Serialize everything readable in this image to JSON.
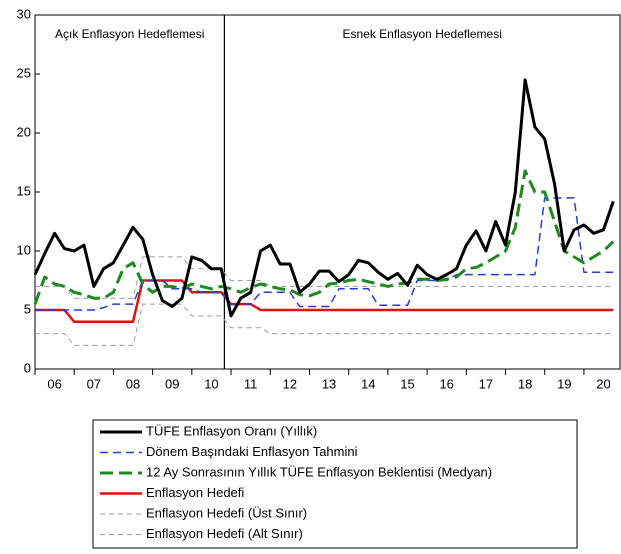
{
  "chart_data": {
    "type": "line",
    "annotations": [
      "Açık Enflasyon Hedeflemesi",
      "Esnek Enflasyon Hedeflemesi"
    ],
    "divider_x": 10.83,
    "x": [
      6,
      6.25,
      6.5,
      6.75,
      7,
      7.25,
      7.5,
      7.75,
      8,
      8.25,
      8.5,
      8.75,
      9,
      9.25,
      9.5,
      9.75,
      10,
      10.25,
      10.5,
      10.75,
      11,
      11.25,
      11.5,
      11.75,
      12,
      12.25,
      12.5,
      12.75,
      13,
      13.25,
      13.5,
      13.75,
      14,
      14.25,
      14.5,
      14.75,
      15,
      15.25,
      15.5,
      15.75,
      16,
      16.25,
      16.5,
      16.75,
      17,
      17.25,
      17.5,
      17.75,
      18,
      18.25,
      18.5,
      18.75,
      19,
      19.25,
      19.5,
      19.75,
      20,
      20.25,
      20.5,
      20.75
    ],
    "xlim": [
      6,
      20.92
    ],
    "xticks": [
      {
        "value": 6.5,
        "label": "06"
      },
      {
        "value": 7.5,
        "label": "07"
      },
      {
        "value": 8.5,
        "label": "08"
      },
      {
        "value": 9.5,
        "label": "09"
      },
      {
        "value": 10.5,
        "label": "10"
      },
      {
        "value": 11.5,
        "label": "11"
      },
      {
        "value": 12.5,
        "label": "12"
      },
      {
        "value": 13.5,
        "label": "13"
      },
      {
        "value": 14.5,
        "label": "14"
      },
      {
        "value": 15.5,
        "label": "15"
      },
      {
        "value": 16.5,
        "label": "16"
      },
      {
        "value": 17.5,
        "label": "17"
      },
      {
        "value": 18.5,
        "label": "18"
      },
      {
        "value": 19.5,
        "label": "19"
      },
      {
        "value": 20.5,
        "label": "20"
      }
    ],
    "ylim": [
      0,
      30
    ],
    "yticks": [
      0,
      5,
      10,
      15,
      20,
      25,
      30
    ],
    "series": [
      {
        "name": "TÜFE Enflasyon Oranı (Yıllık)",
        "color": "#000000",
        "style": "solid",
        "width": 3,
        "values": [
          8.0,
          9.8,
          11.5,
          10.2,
          10.0,
          10.5,
          7.0,
          8.5,
          9.0,
          10.5,
          12.0,
          11.0,
          8.0,
          5.8,
          5.3,
          6.0,
          9.5,
          9.2,
          8.5,
          8.5,
          4.5,
          6.0,
          6.5,
          10.0,
          10.5,
          8.9,
          8.9,
          6.5,
          7.2,
          8.3,
          8.3,
          7.4,
          8.0,
          9.2,
          9.0,
          8.2,
          7.6,
          8.1,
          7.1,
          8.8,
          8.0,
          7.6,
          8.0,
          8.5,
          10.5,
          11.7,
          10.0,
          12.5,
          10.5,
          15.0,
          24.5,
          20.5,
          19.5,
          15.7,
          10.0,
          11.8,
          12.2,
          11.5,
          11.8,
          14.2
        ]
      },
      {
        "name": "Dönem Başındaki Enflasyon Tahmini",
        "color": "#1f3fd6",
        "style": "dashed",
        "width": 1.5,
        "values": [
          5,
          5,
          5,
          5,
          5,
          5,
          5,
          5.2,
          5.5,
          5.5,
          5.5,
          7.5,
          7.5,
          7.5,
          6.8,
          6.8,
          6.8,
          6.5,
          6.5,
          6.5,
          5.5,
          5.5,
          5.5,
          6.5,
          6.5,
          6.5,
          6.5,
          5.3,
          5.3,
          5.3,
          5.3,
          6.8,
          6.8,
          6.8,
          6.8,
          5.4,
          5.4,
          5.4,
          5.4,
          7.5,
          7.5,
          7.5,
          7.5,
          8.0,
          8,
          8,
          8,
          8,
          8,
          8,
          8,
          8,
          14.5,
          14.5,
          14.5,
          14.5,
          8.2,
          8.2,
          8.2,
          8.2
        ]
      },
      {
        "name": "12 Ay Sonrasının Yıllık TÜFE Enflasyon Beklentisi (Medyan)",
        "color": "#1e8a1e",
        "style": "longdash",
        "width": 3,
        "values": [
          5.5,
          7.8,
          7.2,
          7.0,
          6.5,
          6.3,
          6.0,
          6.0,
          6.5,
          8.5,
          9.0,
          7.2,
          6.5,
          7.0,
          7.0,
          6.8,
          7.2,
          7.0,
          6.8,
          7.0,
          6.8,
          6.5,
          6.9,
          7.2,
          7.0,
          6.8,
          6.7,
          6.3,
          6.2,
          6.5,
          7.2,
          7.3,
          7.5,
          7.6,
          7.4,
          7.2,
          7.0,
          7.2,
          7.3,
          7.6,
          7.6,
          7.5,
          7.6,
          7.8,
          8.5,
          8.6,
          9.0,
          9.5,
          10.0,
          12.0,
          16.8,
          15.0,
          15.0,
          12.5,
          10.0,
          9.5,
          9.0,
          9.5,
          10.0,
          10.8
        ]
      },
      {
        "name": "Enflasyon Hedefi",
        "color": "#e01010",
        "style": "solid",
        "width": 2.5,
        "values": [
          5,
          5,
          5,
          5,
          4,
          4,
          4,
          4,
          4,
          4,
          4,
          7.5,
          7.5,
          7.5,
          7.5,
          7.5,
          6.5,
          6.5,
          6.5,
          6.5,
          5.5,
          5.5,
          5.5,
          5,
          5,
          5,
          5,
          5,
          5,
          5,
          5,
          5,
          5,
          5,
          5,
          5,
          5,
          5,
          5,
          5,
          5,
          5,
          5,
          5,
          5,
          5,
          5,
          5,
          5,
          5,
          5,
          5,
          5,
          5,
          5,
          5,
          5,
          5,
          5,
          5
        ]
      },
      {
        "name": "Enflasyon Hedefi (Üst Sınır)",
        "color": "#999999",
        "style": "dotted",
        "width": 1,
        "values": [
          7,
          7,
          7,
          7,
          6,
          6,
          6,
          6,
          6,
          6,
          6,
          9.5,
          9.5,
          9.5,
          9.5,
          9.5,
          8.5,
          8.5,
          8.5,
          8.5,
          7.5,
          7.5,
          7.5,
          7.5,
          7,
          7,
          7,
          7,
          7,
          7,
          7,
          7,
          7,
          7,
          7,
          7,
          7,
          7,
          7,
          7,
          7,
          7,
          7,
          7,
          7,
          7,
          7,
          7,
          7,
          7,
          7,
          7,
          7,
          7,
          7,
          7,
          7,
          7,
          7,
          7
        ]
      },
      {
        "name": "Enflasyon Hedefi (Alt Sınır)",
        "color": "#999999",
        "style": "dotted",
        "width": 1,
        "values": [
          3,
          3,
          3,
          3,
          2,
          2,
          2,
          2,
          2,
          2,
          2,
          5.5,
          5.5,
          5.5,
          5.5,
          5.5,
          4.5,
          4.5,
          4.5,
          4.5,
          3.5,
          3.5,
          3.5,
          3.5,
          3,
          3,
          3,
          3,
          3,
          3,
          3,
          3,
          3,
          3,
          3,
          3,
          3,
          3,
          3,
          3,
          3,
          3,
          3,
          3,
          3,
          3,
          3,
          3,
          3,
          3,
          3,
          3,
          3,
          3,
          3,
          3,
          3,
          3,
          3,
          3
        ]
      }
    ]
  }
}
